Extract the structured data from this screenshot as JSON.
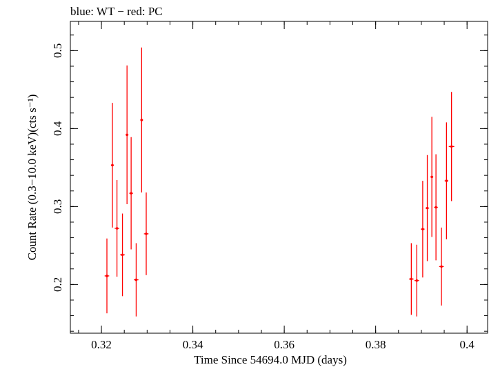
{
  "chart_data": {
    "type": "scatter",
    "title": "blue: WT − red: PC",
    "xlabel": "Time Since 54694.0 MJD (days)",
    "ylabel": "Count Rate (0.3−10.0 keV)(cts s⁻¹)",
    "xlim": [
      0.3132,
      0.4045
    ],
    "ylim": [
      0.1375,
      0.5375
    ],
    "xticks": [
      {
        "value": 0.32,
        "label": "0.32"
      },
      {
        "value": 0.34,
        "label": "0.34"
      },
      {
        "value": 0.36,
        "label": "0.36"
      },
      {
        "value": 0.38,
        "label": "0.38"
      },
      {
        "value": 0.4,
        "label": "0.4"
      }
    ],
    "yticks": [
      {
        "value": 0.2,
        "label": "0.2"
      },
      {
        "value": 0.3,
        "label": "0.3"
      },
      {
        "value": 0.4,
        "label": "0.4"
      },
      {
        "value": 0.5,
        "label": "0.5"
      }
    ],
    "x_minor_step": 0.005,
    "y_minor_step": 0.02,
    "grid": false,
    "series": [
      {
        "color": "#ff0000",
        "points": [
          {
            "x": 0.3212,
            "xerr": 0.0005,
            "y": 0.211,
            "yerr": 0.048
          },
          {
            "x": 0.3224,
            "xerr": 0.0003,
            "y": 0.353,
            "yerr": 0.08
          },
          {
            "x": 0.3234,
            "xerr": 0.0005,
            "y": 0.272,
            "yerr": 0.062
          },
          {
            "x": 0.3246,
            "xerr": 0.0005,
            "y": 0.238,
            "yerr": 0.053
          },
          {
            "x": 0.3256,
            "xerr": 0.0003,
            "y": 0.392,
            "yerr": 0.089
          },
          {
            "x": 0.3265,
            "xerr": 0.0004,
            "y": 0.317,
            "yerr": 0.072
          },
          {
            "x": 0.3276,
            "xerr": 0.0005,
            "y": 0.206,
            "yerr": 0.047
          },
          {
            "x": 0.3288,
            "xerr": 0.0003,
            "y": 0.411,
            "yerr": 0.093
          },
          {
            "x": 0.3298,
            "xerr": 0.0005,
            "y": 0.265,
            "yerr": 0.053
          },
          {
            "x": 0.3878,
            "xerr": 0.0005,
            "y": 0.207,
            "yerr": 0.046
          },
          {
            "x": 0.389,
            "xerr": 0.0005,
            "y": 0.205,
            "yerr": 0.046
          },
          {
            "x": 0.3903,
            "xerr": 0.0004,
            "y": 0.271,
            "yerr": 0.062
          },
          {
            "x": 0.3913,
            "xerr": 0.0004,
            "y": 0.298,
            "yerr": 0.068
          },
          {
            "x": 0.3923,
            "xerr": 0.0003,
            "y": 0.338,
            "yerr": 0.077
          },
          {
            "x": 0.3932,
            "xerr": 0.0004,
            "y": 0.299,
            "yerr": 0.068
          },
          {
            "x": 0.3944,
            "xerr": 0.0005,
            "y": 0.223,
            "yerr": 0.05
          },
          {
            "x": 0.3955,
            "xerr": 0.0004,
            "y": 0.333,
            "yerr": 0.075
          },
          {
            "x": 0.3966,
            "xerr": 0.0006,
            "y": 0.377,
            "yerr": 0.07
          }
        ]
      }
    ]
  }
}
